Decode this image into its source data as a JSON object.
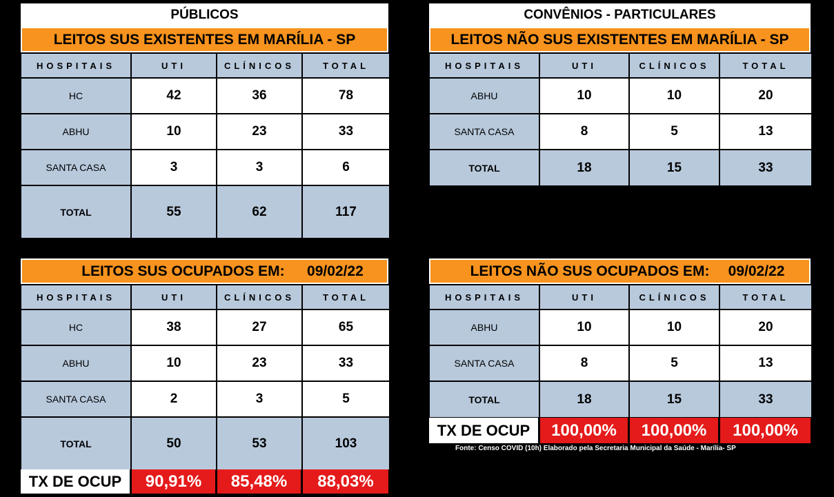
{
  "publicos": {
    "header": "PÚBLICOS",
    "title": "LEITOS SUS EXISTENTES EM MARÍLIA - SP",
    "columns": [
      "HOSPITAIS",
      "UTI",
      "CLÍNICOS",
      "TOTAL"
    ],
    "rows": [
      {
        "name": "HC",
        "uti": "42",
        "clinicos": "36",
        "total": "78"
      },
      {
        "name": "ABHU",
        "uti": "10",
        "clinicos": "23",
        "total": "33"
      },
      {
        "name": "SANTA CASA",
        "uti": "3",
        "clinicos": "3",
        "total": "6"
      }
    ],
    "total_row": {
      "name": "TOTAL",
      "uti": "55",
      "clinicos": "62",
      "total": "117"
    }
  },
  "sus_ocupados": {
    "title": "LEITOS SUS OCUPADOS EM:",
    "date": "09/02/22",
    "columns": [
      "HOSPITAIS",
      "UTI",
      "CLÍNICOS",
      "TOTAL"
    ],
    "rows": [
      {
        "name": "HC",
        "uti": "38",
        "clinicos": "27",
        "total": "65"
      },
      {
        "name": "ABHU",
        "uti": "10",
        "clinicos": "23",
        "total": "33"
      },
      {
        "name": "SANTA CASA",
        "uti": "2",
        "clinicos": "3",
        "total": "5"
      }
    ],
    "total_row": {
      "name": "TOTAL",
      "uti": "50",
      "clinicos": "53",
      "total": "103"
    },
    "tx": {
      "label": "TX DE OCUP",
      "uti": "90,91%",
      "clinicos": "85,48%",
      "total": "88,03%"
    }
  },
  "particulares": {
    "header": "CONVÊNIOS - PARTICULARES",
    "title": "LEITOS NÃO SUS EXISTENTES EM MARÍLIA - SP",
    "columns": [
      "HOSPITAIS",
      "UTI",
      "CLÍNICOS",
      "TOTAL"
    ],
    "rows": [
      {
        "name": "ABHU",
        "uti": "10",
        "clinicos": "10",
        "total": "20"
      },
      {
        "name": "SANTA CASA",
        "uti": "8",
        "clinicos": "5",
        "total": "13"
      }
    ],
    "total_row": {
      "name": "TOTAL",
      "uti": "18",
      "clinicos": "15",
      "total": "33"
    }
  },
  "nao_sus_ocupados": {
    "title": "LEITOS NÃO SUS OCUPADOS EM:",
    "date": "09/02/22",
    "columns": [
      "HOSPITAIS",
      "UTI",
      "CLÍNICOS",
      "TOTAL"
    ],
    "rows": [
      {
        "name": "ABHU",
        "uti": "10",
        "clinicos": "10",
        "total": "20"
      },
      {
        "name": "SANTA CASA",
        "uti": "8",
        "clinicos": "5",
        "total": "13"
      }
    ],
    "total_row": {
      "name": "TOTAL",
      "uti": "18",
      "clinicos": "15",
      "total": "33"
    },
    "tx": {
      "label": "TX DE OCUP",
      "uti": "100,00%",
      "clinicos": "100,00%",
      "total": "100,00%"
    }
  },
  "fonte": "Fonte: Censo COVID (10h) Elaborado pela Secretaria Municipal da Saúde - Marília- SP"
}
